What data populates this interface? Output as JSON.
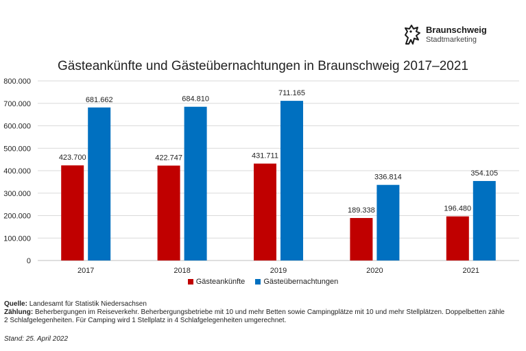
{
  "logo": {
    "name": "Braunschweig",
    "sub": "Stadtmarketing",
    "color": "#1a1a1a"
  },
  "chart_data": {
    "type": "bar",
    "title": "Gästeankünfte und Gästeübernachtungen in Braunschweig 2017–2021",
    "categories": [
      "2017",
      "2018",
      "2019",
      "2020",
      "2021"
    ],
    "series": [
      {
        "name": "Gästeankünfte",
        "color": "#c00000",
        "values": [
          423700,
          422747,
          431711,
          189338,
          196480
        ],
        "labels": [
          "423.700",
          "422.747",
          "431.711",
          "189.338",
          "196.480"
        ]
      },
      {
        "name": "Gästeübernachtungen",
        "color": "#0070c0",
        "values": [
          681662,
          684810,
          711165,
          336814,
          354105
        ],
        "labels": [
          "681.662",
          "684.810",
          "711.165",
          "336.814",
          "354.105"
        ]
      }
    ],
    "ylim": [
      0,
      800000
    ],
    "yticks": [
      0,
      100000,
      200000,
      300000,
      400000,
      500000,
      600000,
      700000,
      800000
    ],
    "ytick_labels": [
      "0",
      "100.000",
      "200.000",
      "300.000",
      "400.000",
      "500.000",
      "600.000",
      "700.000",
      "800.000"
    ],
    "grid": true,
    "legend_position": "bottom-center",
    "xlabel": "",
    "ylabel": ""
  },
  "notes": {
    "source_label": "Quelle:",
    "source_text": "Landesamt für Statistik Niedersachsen",
    "count_label": "Zählung:",
    "count_text_1": "Beherbergungen im Reiseverkehr. Beherbergungsbetriebe mit 10 und mehr Betten sowie Campingplätze mit 10 und mehr Stellplätzen. Doppelbetten zähle",
    "count_text_2": "2 Schlafgelegenheiten. Für Camping wird 1 Stellplatz in 4 Schlafgelegenheiten umgerechnet.",
    "stand": "Stand: 25. April 2022"
  }
}
